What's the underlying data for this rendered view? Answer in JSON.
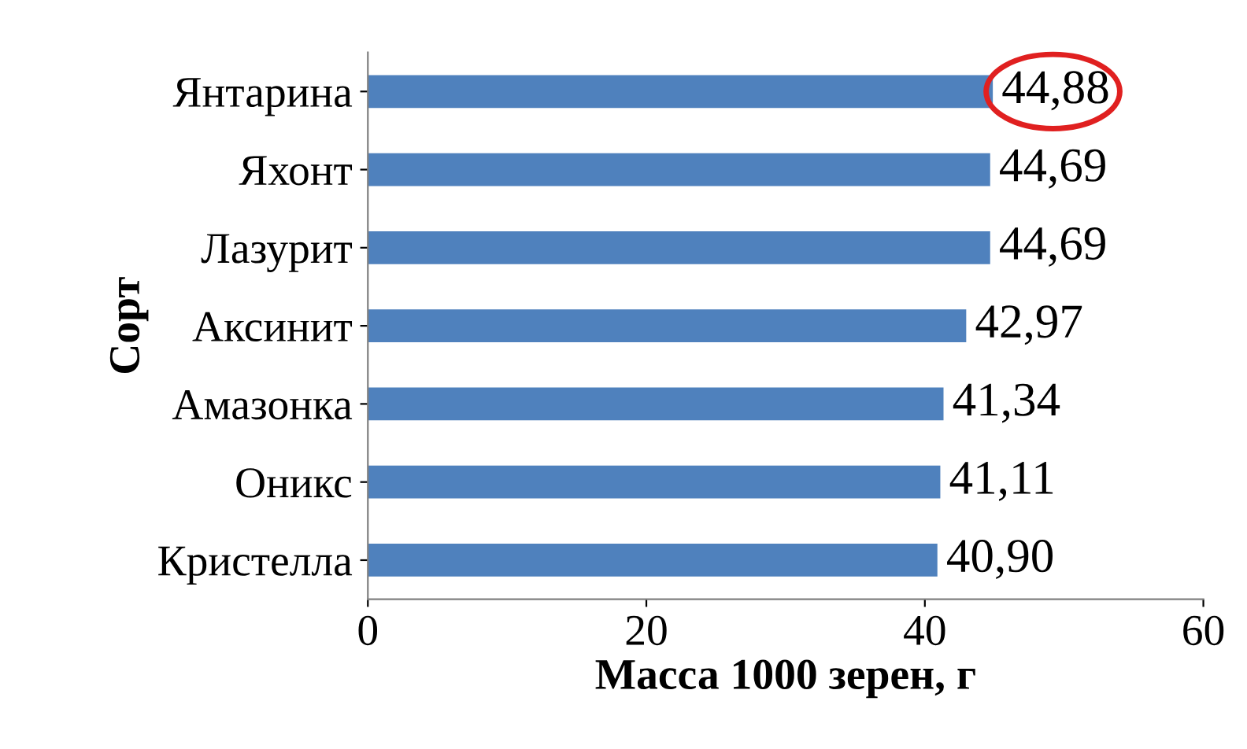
{
  "chart_data": {
    "type": "bar",
    "orientation": "horizontal",
    "xlabel": "Масса 1000 зерен, г",
    "ylabel": "Сорт",
    "categories": [
      "Янтарина",
      "Яхонт",
      "Лазурит",
      "Аксинит",
      "Амазонка",
      "Оникс",
      "Кристелла"
    ],
    "values": [
      44.88,
      44.69,
      44.69,
      42.97,
      41.34,
      41.11,
      40.9
    ],
    "value_labels": [
      "44,88",
      "44,69",
      "44,69",
      "42,97",
      "41,34",
      "41,11",
      "40,90"
    ],
    "color": "#4f81bd",
    "xlim": [
      0,
      60
    ],
    "xticks": [
      0,
      20,
      40,
      60
    ],
    "grid": false,
    "legend": false
  }
}
